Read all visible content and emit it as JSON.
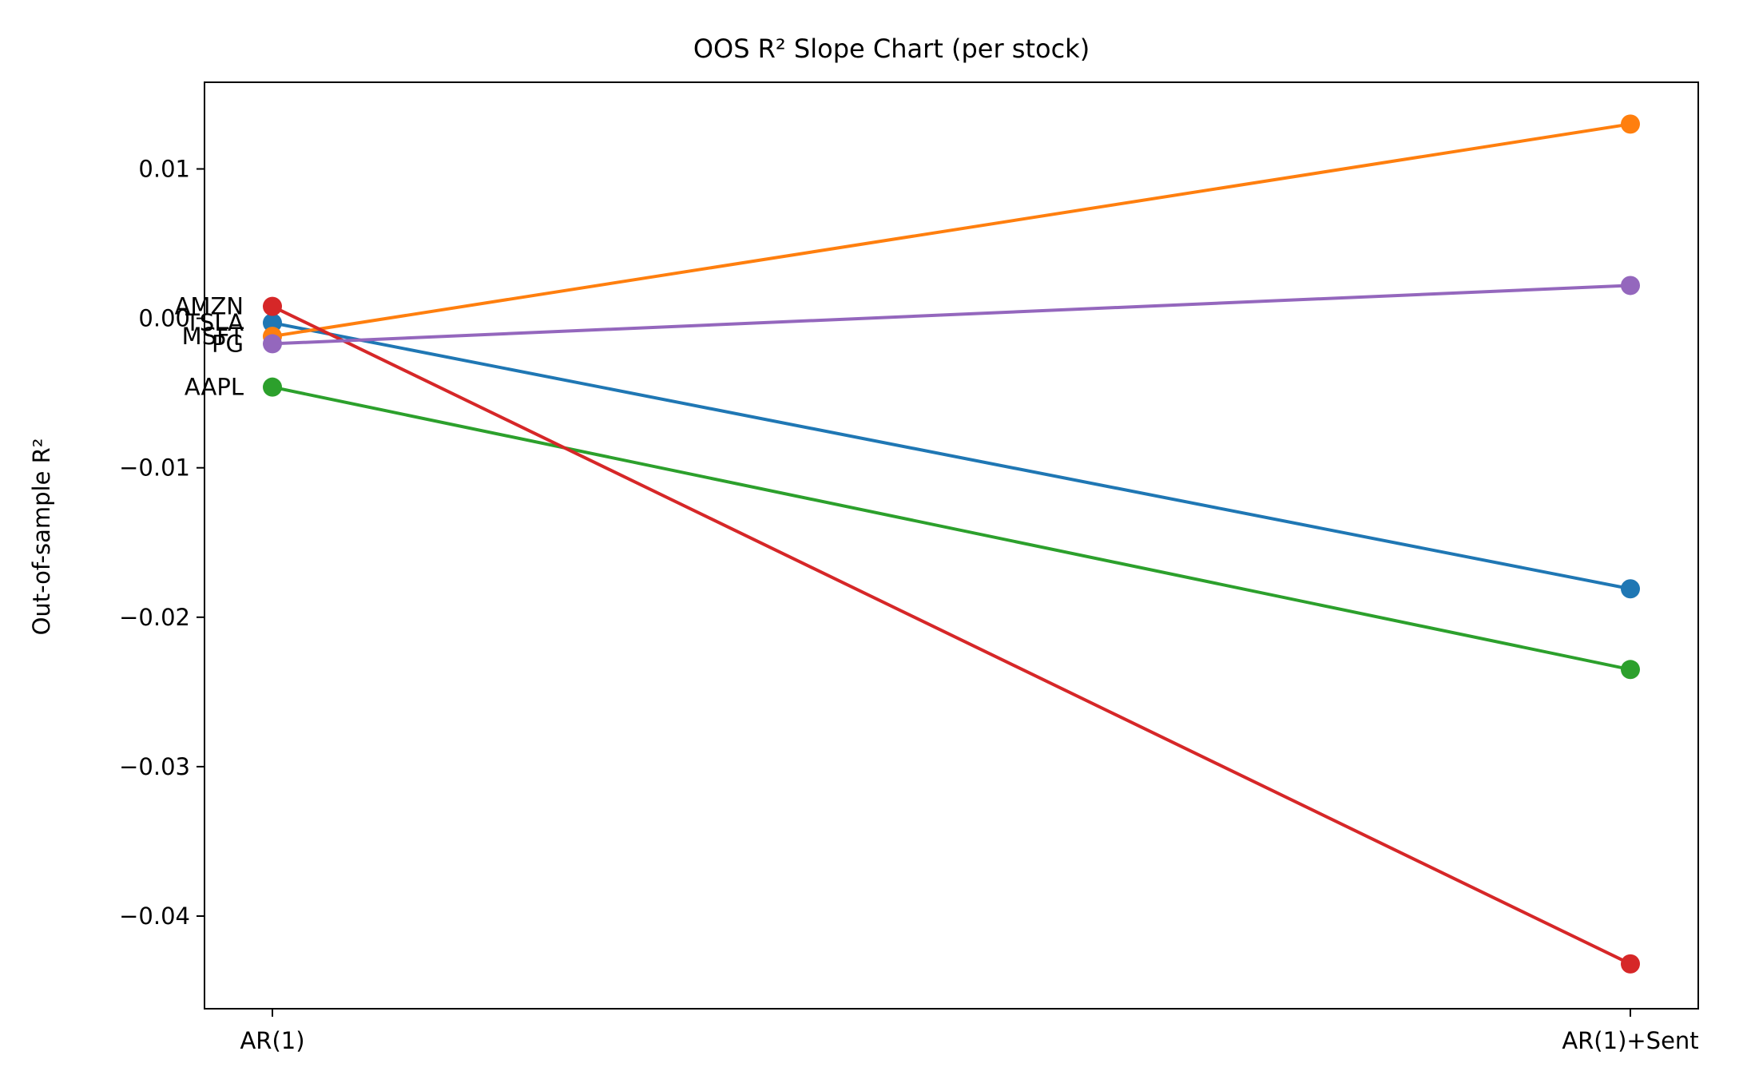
{
  "chart_data": {
    "type": "line",
    "title": "OOS R² Slope Chart (per stock)",
    "xlabel": "",
    "ylabel": "Out-of-sample R²",
    "categories": [
      "AR(1)",
      "AR(1)+Sent"
    ],
    "ylim": [
      -0.0462,
      0.0158
    ],
    "yticks": [
      0.01,
      0.0,
      -0.01,
      -0.02,
      -0.03,
      -0.04
    ],
    "ytick_labels": [
      "0.01",
      "0.00",
      "−0.01",
      "−0.02",
      "−0.03",
      "−0.04"
    ],
    "grid": false,
    "legend": "none",
    "series": [
      {
        "name": "TSLA",
        "color": "#1f77b4",
        "values": [
          -0.0003,
          -0.0181
        ]
      },
      {
        "name": "MSFT",
        "color": "#ff7f0e",
        "values": [
          -0.0012,
          0.013
        ]
      },
      {
        "name": "AAPL",
        "color": "#2ca02c",
        "values": [
          -0.0046,
          -0.0235
        ]
      },
      {
        "name": "AMZN",
        "color": "#d62728",
        "values": [
          0.0008,
          -0.0432
        ]
      },
      {
        "name": "PG",
        "color": "#9467bd",
        "values": [
          -0.0017,
          0.0022
        ]
      }
    ]
  }
}
